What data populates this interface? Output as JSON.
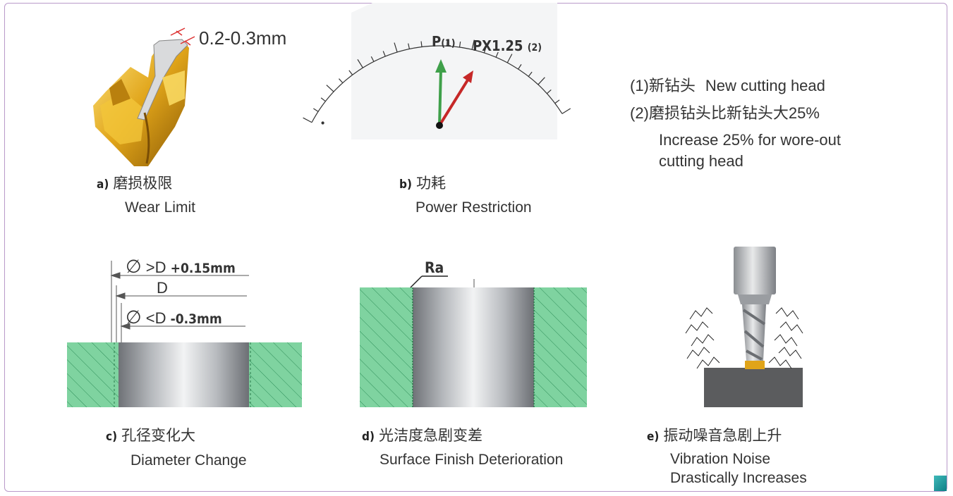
{
  "panel_a": {
    "measure": "0.2-0.3mm",
    "tag": "a)",
    "label_cn": "磨损极限",
    "label_en": "Wear Limit"
  },
  "panel_b": {
    "p_label": "P",
    "p_sup": "(1)",
    "px_label": "PX1.25",
    "px_sup": "(2)",
    "tag": "b)",
    "label_cn": "功耗",
    "label_en": "Power Restriction",
    "needle_green_color": "#3fa04a",
    "needle_red_color": "#c62828"
  },
  "notes": {
    "line1_cn": "(1)新钻头",
    "line1_en": "New cutting head",
    "line2": "(2)磨损钻头比新钻头大25%",
    "line3": "Increase 25% for wore-out",
    "line4": "cutting head"
  },
  "panel_c": {
    "dim1_sym": "∅",
    "dim1_text": ">D",
    "dim1_val": "+0.15mm",
    "dim2_text": "D",
    "dim3_sym": "∅",
    "dim3_text": "<D",
    "dim3_val": "-0.3mm",
    "tag": "c)",
    "label_cn": "孔径变化大",
    "label_en": "Diameter Change"
  },
  "panel_d": {
    "ra": "Ra",
    "tag": "d)",
    "label_cn": "光洁度急剧变差",
    "label_en": "Surface Finish Deterioration"
  },
  "panel_e": {
    "tag": "e)",
    "label_cn": "振动噪音急剧上升",
    "label_en1": "Vibration Noise",
    "label_en2": "Drastically Increases"
  },
  "colors": {
    "hatch_green": "#7fd3a0",
    "frame_border": "#b99ac9",
    "accent_teal": "#1a9aa0"
  }
}
